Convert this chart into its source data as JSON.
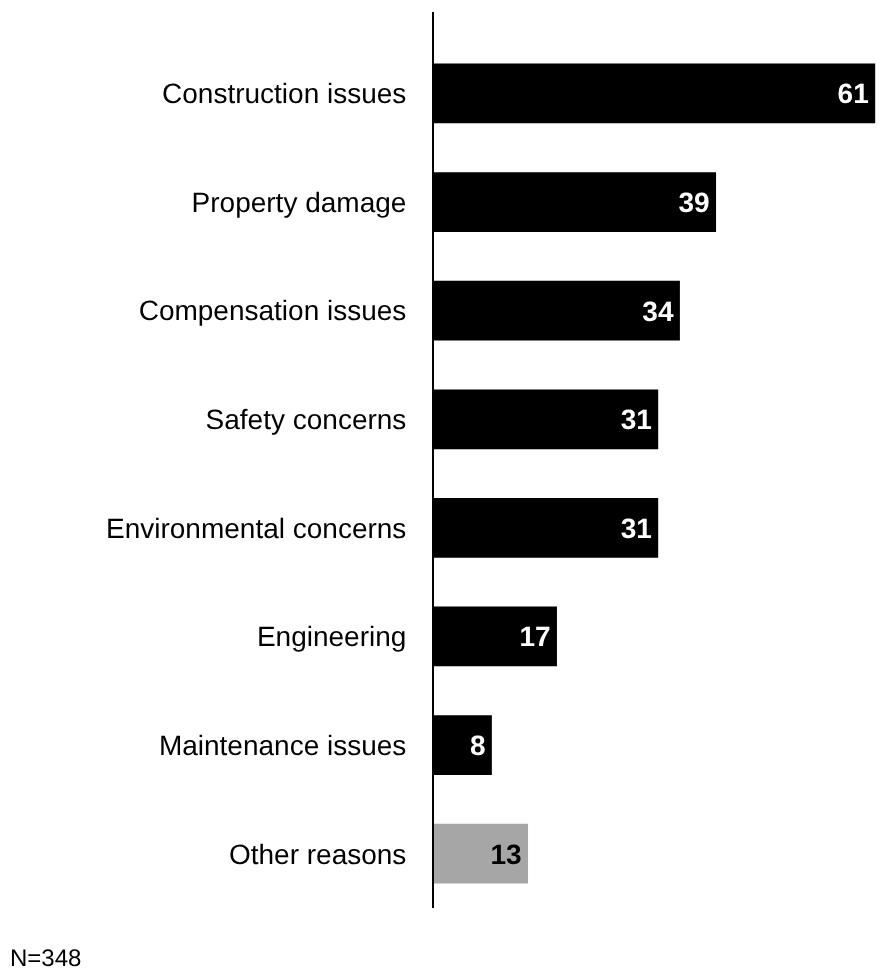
{
  "chart_data": {
    "type": "bar",
    "orientation": "horizontal",
    "categories": [
      "Construction issues",
      "Property damage",
      "Compensation issues",
      "Safety concerns",
      "Environmental concerns",
      "Engineering",
      "Maintenance issues",
      "Other reasons"
    ],
    "values": [
      61,
      39,
      34,
      31,
      31,
      17,
      8,
      13
    ],
    "colors": [
      "#000000",
      "#000000",
      "#000000",
      "#000000",
      "#000000",
      "#000000",
      "#000000",
      "#a6a6a6"
    ],
    "data_labels": true,
    "annotations": [
      "N=348"
    ]
  }
}
